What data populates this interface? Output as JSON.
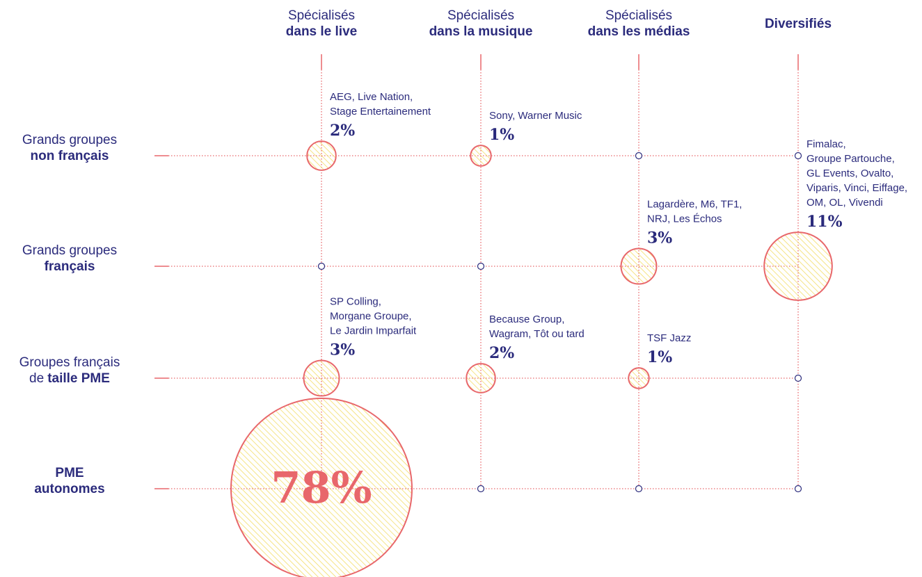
{
  "chart_data": {
    "type": "matrix",
    "columns": [
      [
        {
          "plain": "Spécialisés"
        },
        {
          "bold": "dans le live"
        }
      ],
      [
        {
          "plain": "Spécialisés"
        },
        {
          "bold": "dans la musique"
        }
      ],
      [
        {
          "plain": "Spécialisés"
        },
        {
          "bold": "dans les médias"
        }
      ],
      [
        {
          "bold": "Diversifiés"
        }
      ]
    ],
    "rows": [
      [
        {
          "plain": "Grands groupes"
        },
        {
          "bold": "non français"
        }
      ],
      [
        {
          "plain": "Grands groupes"
        },
        {
          "bold": "français"
        }
      ],
      [
        {
          "plain": "Groupes français"
        },
        {
          "plain": "de",
          "bold": "taille PME"
        }
      ],
      [
        {
          "bold": "PME"
        },
        {
          "bold": "autonomes"
        }
      ]
    ],
    "values": [
      [
        2,
        1,
        null,
        null
      ],
      [
        null,
        null,
        3,
        11
      ],
      [
        3,
        2,
        1,
        null
      ],
      [
        78,
        null,
        null,
        null
      ]
    ],
    "value_labels": [
      [
        "2%",
        "1%",
        null,
        null
      ],
      [
        null,
        null,
        "3%",
        "11%"
      ],
      [
        "3%",
        "2%",
        "1%",
        null
      ],
      [
        "78%",
        null,
        null,
        null
      ]
    ],
    "companies": [
      [
        [
          "AEG, Live Nation,",
          "Stage Entertainement"
        ],
        [
          "Sony, Warner Music"
        ],
        null,
        null
      ],
      [
        null,
        null,
        [
          "Lagardère, M6, TF1,",
          "NRJ, Les Échos"
        ],
        [
          "Fimalac,",
          "Groupe Partouche,",
          "GL Events, Ovalto,",
          "Viparis, Vinci, Eiffage,",
          "OM, OL, Vivendi"
        ]
      ],
      [
        [
          "SP Colling,",
          "Morgane Groupe,",
          "Le Jardin Imparfait"
        ],
        [
          "Because Group,",
          "Wagram, Tôt ou tard"
        ],
        [
          "TSF Jazz"
        ],
        null
      ],
      [
        null,
        null,
        null,
        null
      ]
    ],
    "color": "#e8676b",
    "fill_color": "#f5e36a"
  }
}
